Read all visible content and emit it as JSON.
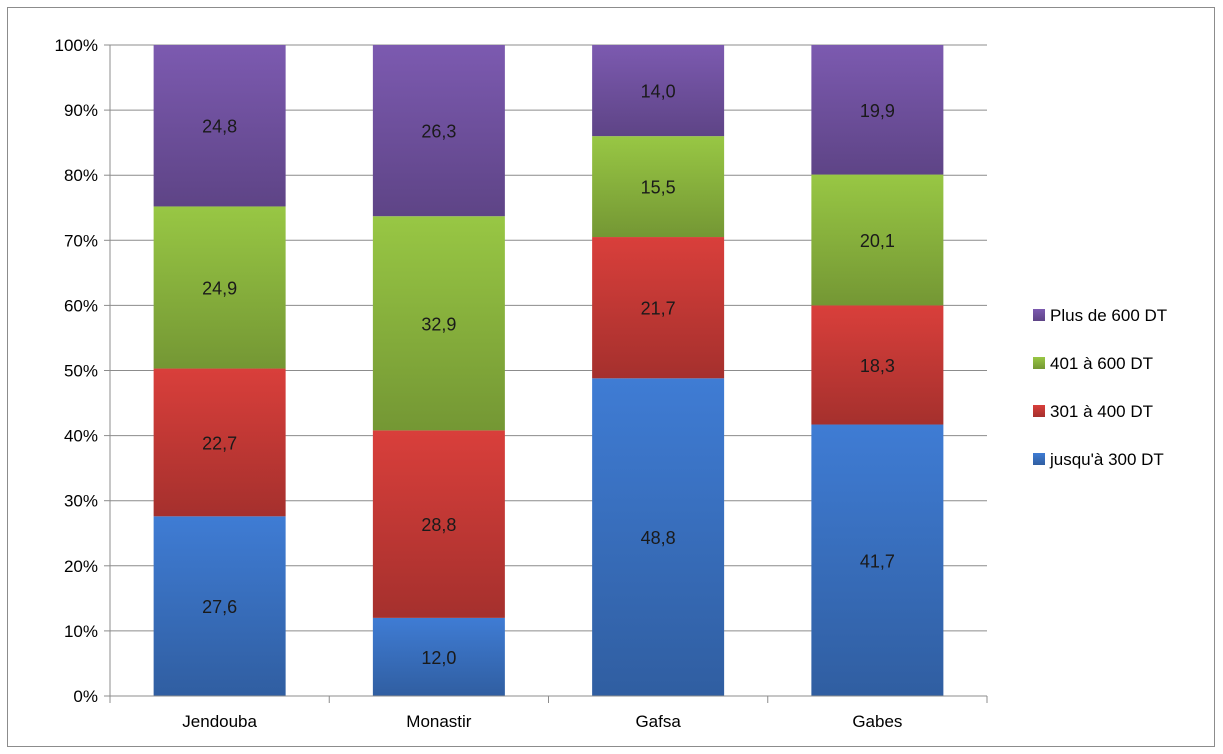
{
  "chart_data": {
    "type": "bar",
    "stacked": true,
    "percent_stacked": true,
    "categories": [
      "Jendouba",
      "Monastir",
      "Gafsa",
      "Gabes"
    ],
    "series": [
      {
        "name": "jusqu'à 300 DT",
        "color": "#3a73c4",
        "values": [
          27.6,
          12.0,
          48.8,
          41.7
        ],
        "labels": [
          "27,6",
          "12,0",
          "48,8",
          "41,7"
        ]
      },
      {
        "name": "301 à 400 DT",
        "color": "#c93a37",
        "values": [
          22.7,
          28.8,
          21.7,
          18.3
        ],
        "labels": [
          "22,7",
          "28,8",
          "21,7",
          "18,3"
        ]
      },
      {
        "name": "401 à 600 DT",
        "color": "#8db83f",
        "values": [
          24.9,
          32.9,
          15.5,
          20.1
        ],
        "labels": [
          "24,9",
          "32,9",
          "15,5",
          "20,1"
        ]
      },
      {
        "name": "Plus de 600 DT",
        "color": "#7353a3",
        "values": [
          24.8,
          26.3,
          14.0,
          19.9
        ],
        "labels": [
          "24,8",
          "26,3",
          "14,0",
          "19,9"
        ]
      }
    ],
    "y_ticks": [
      "0%",
      "10%",
      "20%",
      "30%",
      "40%",
      "50%",
      "60%",
      "70%",
      "80%",
      "90%",
      "100%"
    ],
    "ylim": [
      0,
      100
    ],
    "grid": true,
    "legend_position": "right",
    "legend_order": [
      "Plus de 600 DT",
      "401 à 600 DT",
      "301 à 400 DT",
      "jusqu'à 300 DT"
    ]
  }
}
